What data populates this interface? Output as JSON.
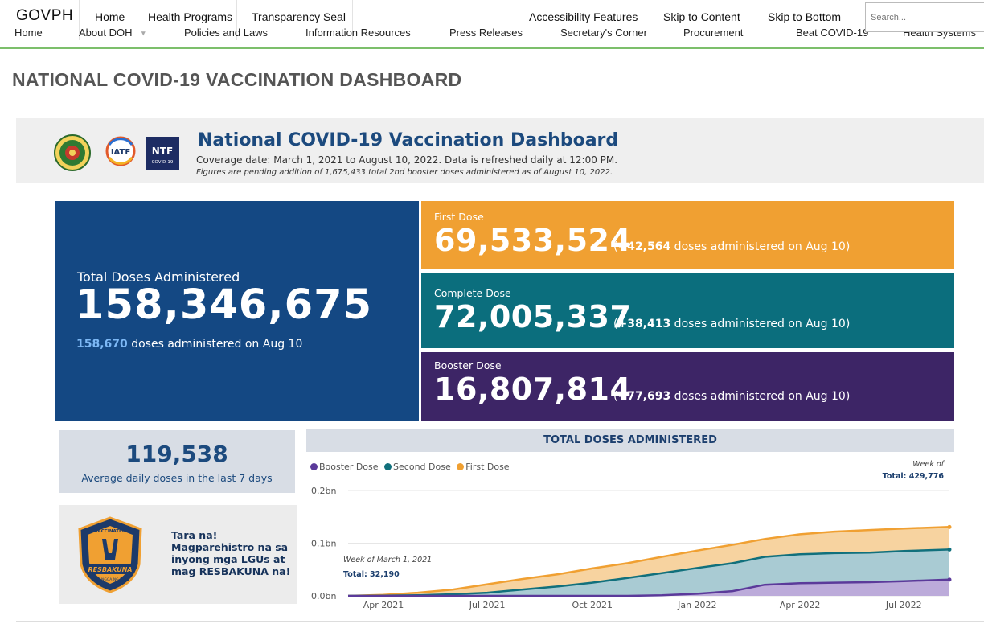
{
  "site": {
    "brand": "GOVPH",
    "nav_top": [
      "Home",
      "Health Programs",
      "Transparency Seal",
      "Accessibility Features",
      "Skip to Content",
      "Skip to Bottom"
    ],
    "nav_bottom": [
      "Home",
      "About DOH",
      "Policies and Laws",
      "Information Resources",
      "Press Releases",
      "Secretary's Corner",
      "Procurement",
      "Beat COVID-19",
      "Health Systems"
    ],
    "search_placeholder": "Search..."
  },
  "page_title": "NATIONAL COVID-19 VACCINATION DASHBOARD",
  "dashboard": {
    "title": "National COVID-19 Vaccination Dashboard",
    "coverage": "Coverage date: March 1, 2021 to August 10, 2022. Data is refreshed daily at 12:00 PM.",
    "note": "Figures are pending addition of 1,675,433 total 2nd booster doses administered as of August 10, 2022.",
    "logos": [
      "doh-seal-logo",
      "iatf-logo",
      "ntf-covid19-logo"
    ],
    "ntf_logo_text": "NTF",
    "ntf_logo_sub": "COVID-19",
    "iatf_logo_text": "IATF"
  },
  "total": {
    "label": "Total Doses Administered",
    "value": "158,346,675",
    "daily": "158,670",
    "daily_suffix": " doses administered on Aug 10"
  },
  "first": {
    "label": "First Dose",
    "value": "69,533,524",
    "delta": "+42,564",
    "suffix": " doses administered on Aug 10"
  },
  "complete": {
    "label": "Complete Dose",
    "value": "72,005,337",
    "delta": "+38,413",
    "suffix": " doses administered on Aug 10"
  },
  "booster": {
    "label": "Booster Dose",
    "value": "16,807,814",
    "delta": "+77,693",
    "suffix": " doses administered on Aug 10"
  },
  "average": {
    "value": "119,538",
    "label": "Average daily doses in the last 7 days"
  },
  "resbakuna": {
    "text": "Tara na! Magparehistro na sa inyong mga LGUs at mag RESBAKUNA na!",
    "badge_top": "VACCINATED",
    "badge_name": "RESBAKUNA",
    "badge_sub": "KASANGGA NG BIDA"
  },
  "colors": {
    "first": "#f0a032",
    "second": "#0b6e7d",
    "booster": "#3d2566",
    "header_blue": "#144883"
  },
  "chart_data": {
    "type": "area",
    "title": "TOTAL DOSES ADMINISTERED",
    "legend_position": "top-left",
    "x_tick_labels": [
      "Apr 2021",
      "Jul 2021",
      "Oct 2021",
      "Jan 2022",
      "Apr 2022",
      "Jul 2022"
    ],
    "y_tick_labels": [
      "0.0bn",
      "0.1bn",
      "0.2bn"
    ],
    "ylim": [
      0,
      0.2
    ],
    "y_unit": "bn",
    "x": [
      "2021-03-01",
      "2021-04-01",
      "2021-05-01",
      "2021-06-01",
      "2021-07-01",
      "2021-08-01",
      "2021-09-01",
      "2021-10-01",
      "2021-11-01",
      "2021-12-01",
      "2022-01-01",
      "2022-02-01",
      "2022-03-01",
      "2022-04-01",
      "2022-05-01",
      "2022-06-01",
      "2022-07-01",
      "2022-08-10"
    ],
    "series": [
      {
        "name": "Booster Dose",
        "color": "#5b3a9a",
        "values": [
          0,
          0,
          0,
          0,
          0,
          0,
          0,
          0,
          0,
          0.001,
          0.004,
          0.009,
          0.021,
          0.024,
          0.025,
          0.026,
          0.028,
          0.0308
        ]
      },
      {
        "name": "Second Dose",
        "color": "#11707c",
        "values": [
          0,
          0.0004,
          0.001,
          0.003,
          0.006,
          0.012,
          0.018,
          0.025,
          0.034,
          0.043,
          0.053,
          0.062,
          0.074,
          0.079,
          0.081,
          0.082,
          0.085,
          0.088
        ]
      },
      {
        "name": "First Dose",
        "color": "#f0a032",
        "values": [
          0,
          0.002,
          0.006,
          0.012,
          0.022,
          0.032,
          0.041,
          0.052,
          0.062,
          0.074,
          0.086,
          0.097,
          0.108,
          0.117,
          0.122,
          0.125,
          0.128,
          0.1308
        ]
      }
    ],
    "tooltips": [
      {
        "title": "Week of March 1, 2021",
        "label": "Total: ",
        "value": "32,190"
      },
      {
        "title": "Week of",
        "label": "Total: ",
        "value": "429,776"
      }
    ]
  }
}
